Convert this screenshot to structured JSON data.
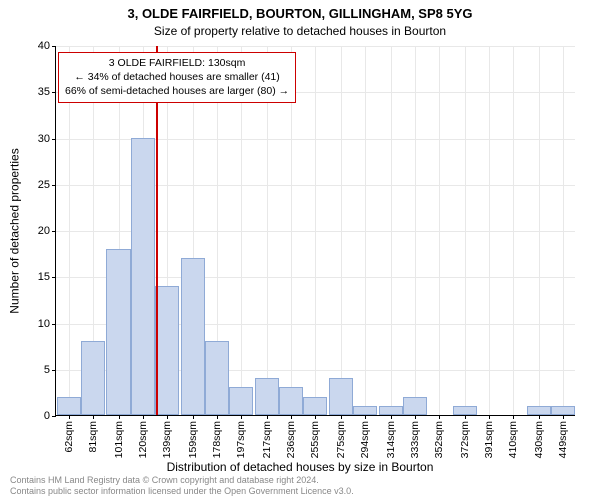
{
  "title_main": "3, OLDE FAIRFIELD, BOURTON, GILLINGHAM, SP8 5YG",
  "title_sub": "Size of property relative to detached houses in Bourton",
  "yaxis_label": "Number of detached properties",
  "xaxis_label": "Distribution of detached houses by size in Bourton",
  "footer_line1": "Contains HM Land Registry data © Crown copyright and database right 2024.",
  "footer_line2": "Contains public sector information licensed under the Open Government Licence v3.0.",
  "chart": {
    "type": "histogram",
    "background_color": "#ffffff",
    "grid_color": "#e8e8e8",
    "axis_color": "#000000",
    "bar_fill": "#cad7ee",
    "bar_border": "#8faad6",
    "ref_line_color": "#cc0000",
    "ref_value_sqm": 130,
    "title_fontsize": 13,
    "subtitle_fontsize": 12,
    "label_fontsize": 12,
    "tick_fontsize": 11,
    "annot_fontsize": 10.5,
    "ylim": [
      0,
      40
    ],
    "ytick_step": 5,
    "x_range_sqm": [
      52,
      459
    ],
    "x_ticks": [
      {
        "v": 62,
        "label": "62sqm"
      },
      {
        "v": 81,
        "label": "81sqm"
      },
      {
        "v": 101,
        "label": "101sqm"
      },
      {
        "v": 120,
        "label": "120sqm"
      },
      {
        "v": 139,
        "label": "139sqm"
      },
      {
        "v": 159,
        "label": "159sqm"
      },
      {
        "v": 178,
        "label": "178sqm"
      },
      {
        "v": 197,
        "label": "197sqm"
      },
      {
        "v": 217,
        "label": "217sqm"
      },
      {
        "v": 236,
        "label": "236sqm"
      },
      {
        "v": 255,
        "label": "255sqm"
      },
      {
        "v": 275,
        "label": "275sqm"
      },
      {
        "v": 294,
        "label": "294sqm"
      },
      {
        "v": 314,
        "label": "314sqm"
      },
      {
        "v": 333,
        "label": "333sqm"
      },
      {
        "v": 352,
        "label": "352sqm"
      },
      {
        "v": 372,
        "label": "372sqm"
      },
      {
        "v": 391,
        "label": "391sqm"
      },
      {
        "v": 410,
        "label": "410sqm"
      },
      {
        "v": 430,
        "label": "430sqm"
      },
      {
        "v": 449,
        "label": "449sqm"
      }
    ],
    "bars": [
      {
        "center": 62,
        "count": 2
      },
      {
        "center": 81,
        "count": 8
      },
      {
        "center": 101,
        "count": 18
      },
      {
        "center": 120,
        "count": 30
      },
      {
        "center": 139,
        "count": 14
      },
      {
        "center": 159,
        "count": 17
      },
      {
        "center": 178,
        "count": 8
      },
      {
        "center": 197,
        "count": 3
      },
      {
        "center": 217,
        "count": 4
      },
      {
        "center": 236,
        "count": 3
      },
      {
        "center": 255,
        "count": 2
      },
      {
        "center": 275,
        "count": 4
      },
      {
        "center": 294,
        "count": 1
      },
      {
        "center": 314,
        "count": 1
      },
      {
        "center": 333,
        "count": 2
      },
      {
        "center": 352,
        "count": 0
      },
      {
        "center": 372,
        "count": 1
      },
      {
        "center": 391,
        "count": 0
      },
      {
        "center": 410,
        "count": 0
      },
      {
        "center": 430,
        "count": 1
      },
      {
        "center": 449,
        "count": 1
      }
    ],
    "bar_width_sqm": 19,
    "annotation": {
      "line1": "3 OLDE FAIRFIELD: 130sqm",
      "line2": "← 34% of detached houses are smaller (41)",
      "line3": "66% of semi-detached houses are larger (80) →",
      "box_border": "#cc0000",
      "box_bg": "#ffffff"
    }
  }
}
